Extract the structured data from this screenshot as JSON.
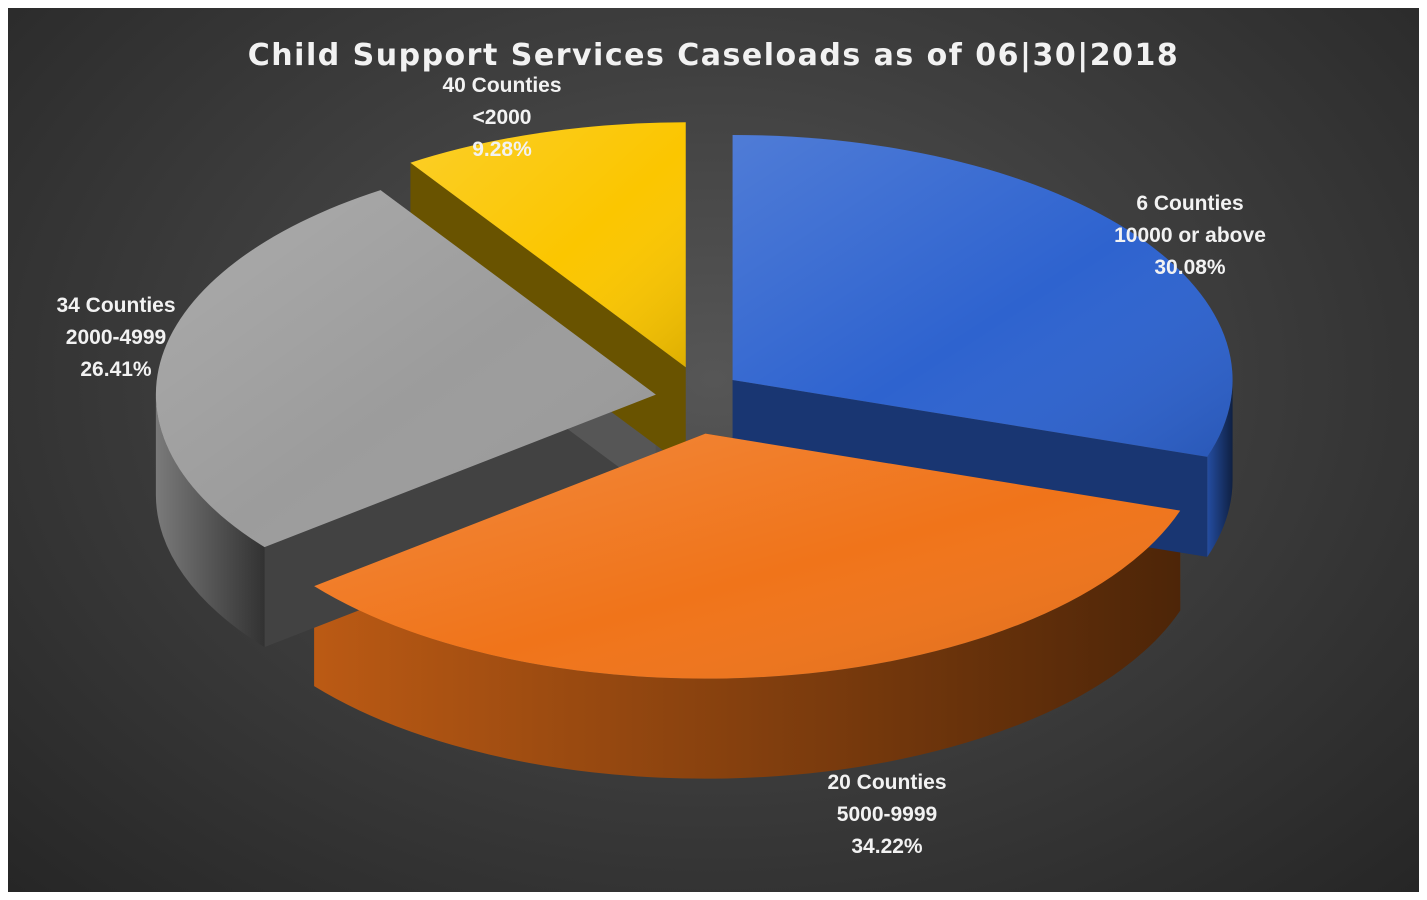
{
  "chart_data": {
    "type": "pie",
    "title": "Child Support Services Caseloads as of 06|30|2018",
    "slices": [
      {
        "counties": "6 Counties",
        "range": "10000 or above",
        "percent_label": "30.08%",
        "value": 30.08,
        "color": "#2e63cf"
      },
      {
        "counties": "20 Counties",
        "range": "5000-9999",
        "percent_label": "34.22%",
        "value": 34.22,
        "color": "#f0741a"
      },
      {
        "counties": "34 Counties",
        "range": "2000-4999",
        "percent_label": "26.41%",
        "value": 26.41,
        "color": "#9c9c9c"
      },
      {
        "counties": "40 Counties",
        "range": "<2000",
        "percent_label": "9.28%",
        "value": 9.28,
        "color": "#fbc600"
      }
    ],
    "exploded": true,
    "legend": "none"
  }
}
